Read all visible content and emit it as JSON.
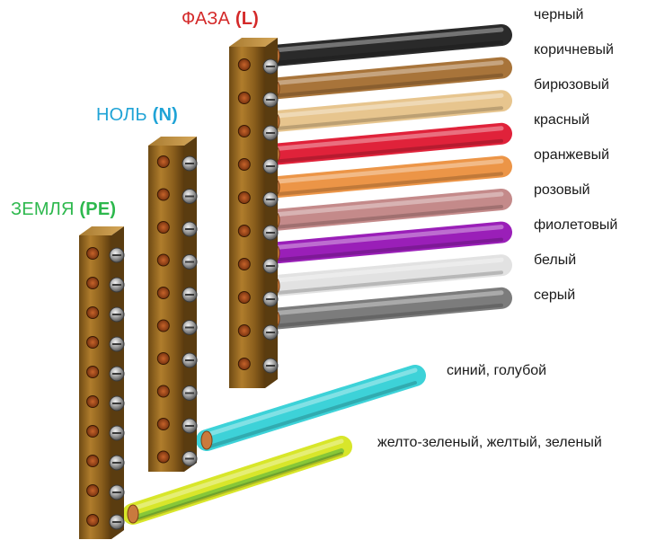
{
  "buses": {
    "phase": {
      "label": "ФАЗА",
      "code": "(L)",
      "color": "#d42a2a"
    },
    "neutral": {
      "label": "НОЛЬ",
      "code": "(N)",
      "color": "#1fa3d6"
    },
    "earth": {
      "label": "ЗЕМЛЯ",
      "code": "(PE)",
      "color": "#2db84d"
    }
  },
  "phase_wires": [
    {
      "label": "черный",
      "color": "#2a2a2a"
    },
    {
      "label": "коричневый",
      "color": "#a8743a"
    },
    {
      "label": "бирюзовый",
      "color": "#e7c58e"
    },
    {
      "label": "красный",
      "color": "#e0223a"
    },
    {
      "label": "оранжевый",
      "color": "#ec9547"
    },
    {
      "label": "розовый",
      "color": "#c48a8a"
    },
    {
      "label": "фиолетовый",
      "color": "#9a1fb8"
    },
    {
      "label": "белый",
      "color": "#e2e2e2"
    },
    {
      "label": "серый",
      "color": "#7c7c7c"
    }
  ],
  "neutral_wire": {
    "label": "синий, голубой",
    "color": "#3dd2d8"
  },
  "earth_wire": {
    "label": "желто-зеленый, желтый, зеленый",
    "color": "#d8e62a",
    "stripe": "#7fc43a"
  }
}
